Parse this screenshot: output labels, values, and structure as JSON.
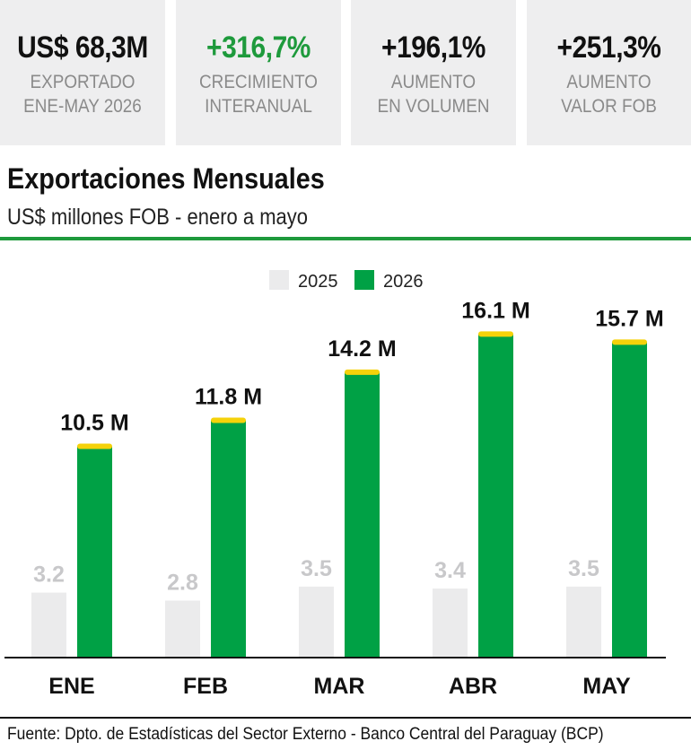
{
  "kpis": [
    {
      "value": "US$ 68,3M",
      "label1": "EXPORTADO",
      "label2": "ENE-MAY 2026",
      "color": "#111111"
    },
    {
      "value": "+316,7%",
      "label1": "CRECIMIENTO",
      "label2": "INTERANUAL",
      "color": "#1e9a3c"
    },
    {
      "value": "+196,1%",
      "label1": "AUMENTO",
      "label2": "EN VOLUMEN",
      "color": "#111111"
    },
    {
      "value": "+251,3%",
      "label1": "AUMENTO",
      "label2": "VALOR FOB",
      "color": "#111111"
    }
  ],
  "header": {
    "title": "Exportaciones Mensuales",
    "subtitle": "US$ millones FOB - enero a mayo"
  },
  "source": "Fuente: Dpto. de Estadísticas del Sector Externo - Banco Central del Paraguay (BCP)",
  "chart_data": {
    "type": "bar",
    "categories": [
      "ENE",
      "FEB",
      "MAR",
      "ABR",
      "MAY"
    ],
    "series": [
      {
        "name": "2025",
        "values": [
          3.2,
          2.8,
          3.5,
          3.4,
          3.5
        ],
        "labels": [
          "3.2",
          "2.8",
          "3.5",
          "3.4",
          "3.5"
        ],
        "color": "#ebebec"
      },
      {
        "name": "2026",
        "values": [
          10.5,
          11.8,
          14.2,
          16.1,
          15.7
        ],
        "labels": [
          "10.5 M",
          "11.8 M",
          "14.2 M",
          "16.1 M",
          "15.7 M"
        ],
        "color": "#00a145",
        "cap_color": "#f5d20a"
      }
    ],
    "legend_position": "top-center",
    "ylim": [
      0,
      18
    ],
    "grid": false,
    "colors": {
      "rule": "#1e9a3c",
      "axis": "#111111",
      "label_2025": "#c8c8ca"
    }
  }
}
